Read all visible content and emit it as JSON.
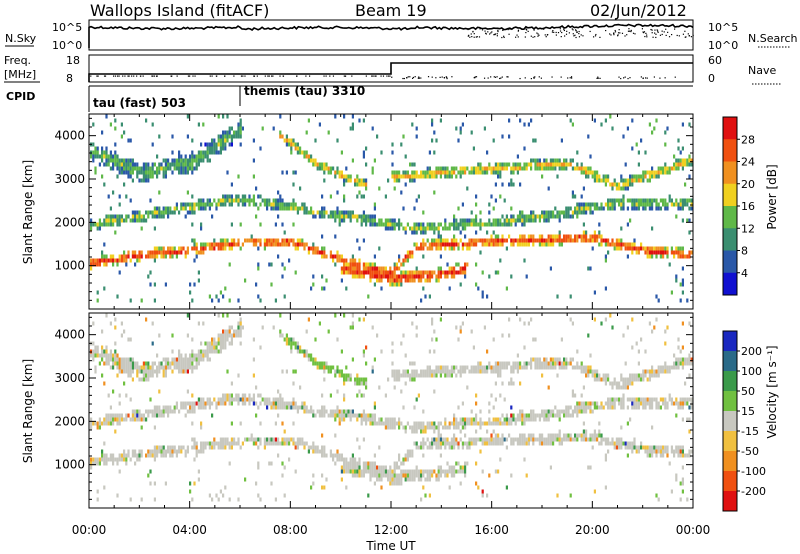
{
  "header": {
    "station": "Wallops Island (fitACF)",
    "beam": "Beam 19",
    "date": "02/Jun/2012"
  },
  "summary": {
    "nsky_label": "N.Sky",
    "nsky_top": "10^5",
    "nsky_bottom": "10^0",
    "nsearch_top": "10^5",
    "nsearch_bottom": "10^0",
    "nsearch_label": "N.Search",
    "freq_label_1": "Freq.",
    "freq_label_2": "[MHz]",
    "freq_top": "18",
    "freq_bottom": "8",
    "nave_top": "60",
    "nave_bottom": "0",
    "nave_label": "Nave",
    "cpid_label": "CPID",
    "cpid_1": "tau (fast) 503",
    "cpid_2": "themis (tau) 3310",
    "freq_step_hour": 12
  },
  "x_axis": {
    "label": "Time UT",
    "ticks": [
      "00:00",
      "04:00",
      "08:00",
      "12:00",
      "16:00",
      "20:00",
      "00:00"
    ]
  },
  "power_panel": {
    "ylabel": "Slant Range [km]",
    "cbar_label": "Power [dB]",
    "cbar_ticks": [
      "4",
      "8",
      "12",
      "16",
      "20",
      "24",
      "28"
    ],
    "cbar_colors": [
      "#1010d0",
      "#2a58a8",
      "#3a8e70",
      "#5fb848",
      "#f0d020",
      "#f09020",
      "#f05010",
      "#e01010"
    ]
  },
  "velocity_panel": {
    "ylabel": "Slant Range [km]",
    "cbar_label": "Velocity [m s⁻¹]",
    "cbar_ticks": [
      "200",
      "100",
      "50",
      "15",
      "-15",
      "-50",
      "-100",
      "-200"
    ],
    "cbar_colors": [
      "#1a28c0",
      "#2a6a88",
      "#3a9a4a",
      "#70c040",
      "#c8c8c0",
      "#f0c040",
      "#f09020",
      "#f05010",
      "#e01010"
    ]
  },
  "chart_data": [
    {
      "type": "heatmap",
      "title": "Power",
      "xlabel": "Time UT",
      "ylabel": "Slant Range [km]",
      "xlim": [
        0,
        24
      ],
      "ylim": [
        0,
        4500
      ],
      "y_ticks": [
        1000,
        2000,
        3000,
        4000
      ],
      "colorbar": {
        "label": "Power [dB]",
        "range": [
          0,
          32
        ]
      },
      "bands": [
        {
          "name": "main",
          "points": [
            [
              0,
              1000
            ],
            [
              2,
              1200
            ],
            [
              4,
              1300
            ],
            [
              6,
              1480
            ],
            [
              8,
              1500
            ],
            [
              10,
              1100
            ],
            [
              11,
              900
            ],
            [
              12,
              800
            ],
            [
              13,
              1400
            ],
            [
              16,
              1500
            ],
            [
              20,
              1600
            ],
            [
              22,
              1300
            ],
            [
              24,
              1200
            ]
          ],
          "width_km": 260,
          "power_db": 26
        },
        {
          "name": "low-dip",
          "points": [
            [
              10,
              900
            ],
            [
              12,
              650
            ],
            [
              14,
              750
            ],
            [
              15,
              900
            ]
          ],
          "width_km": 300,
          "power_db": 28
        },
        {
          "name": "mid",
          "points": [
            [
              0,
              1900
            ],
            [
              3,
              2200
            ],
            [
              6,
              2500
            ],
            [
              9,
              2200
            ],
            [
              11,
              2000
            ],
            [
              13,
              1800
            ],
            [
              17,
              2000
            ],
            [
              21,
              2400
            ],
            [
              24,
              2400
            ]
          ],
          "width_km": 260,
          "power_db": 14
        },
        {
          "name": "upper",
          "points": [
            [
              12,
              3000
            ],
            [
              16,
              3200
            ],
            [
              19,
              3300
            ],
            [
              21,
              2800
            ],
            [
              24,
              3400
            ]
          ],
          "width_km": 260,
          "power_db": 18
        },
        {
          "name": "early",
          "points": [
            [
              0,
              3600
            ],
            [
              2,
              3100
            ],
            [
              4,
              3300
            ],
            [
              6,
              4100
            ]
          ],
          "width_km": 450,
          "power_db": 12
        },
        {
          "name": "arc",
          "points": [
            [
              7.5,
              4000
            ],
            [
              9,
              3300
            ],
            [
              11,
              2800
            ]
          ],
          "width_km": 240,
          "power_db": 18
        }
      ]
    },
    {
      "type": "heatmap",
      "title": "Velocity",
      "xlabel": "Time UT",
      "ylabel": "Slant Range [km]",
      "xlim": [
        0,
        24
      ],
      "ylim": [
        0,
        4500
      ],
      "y_ticks": [
        1000,
        2000,
        3000,
        4000
      ],
      "colorbar": {
        "label": "Velocity [m s⁻¹]",
        "range": [
          -200,
          200
        ]
      },
      "dominant_velocity": "-15 to 15 (grey)"
    }
  ]
}
